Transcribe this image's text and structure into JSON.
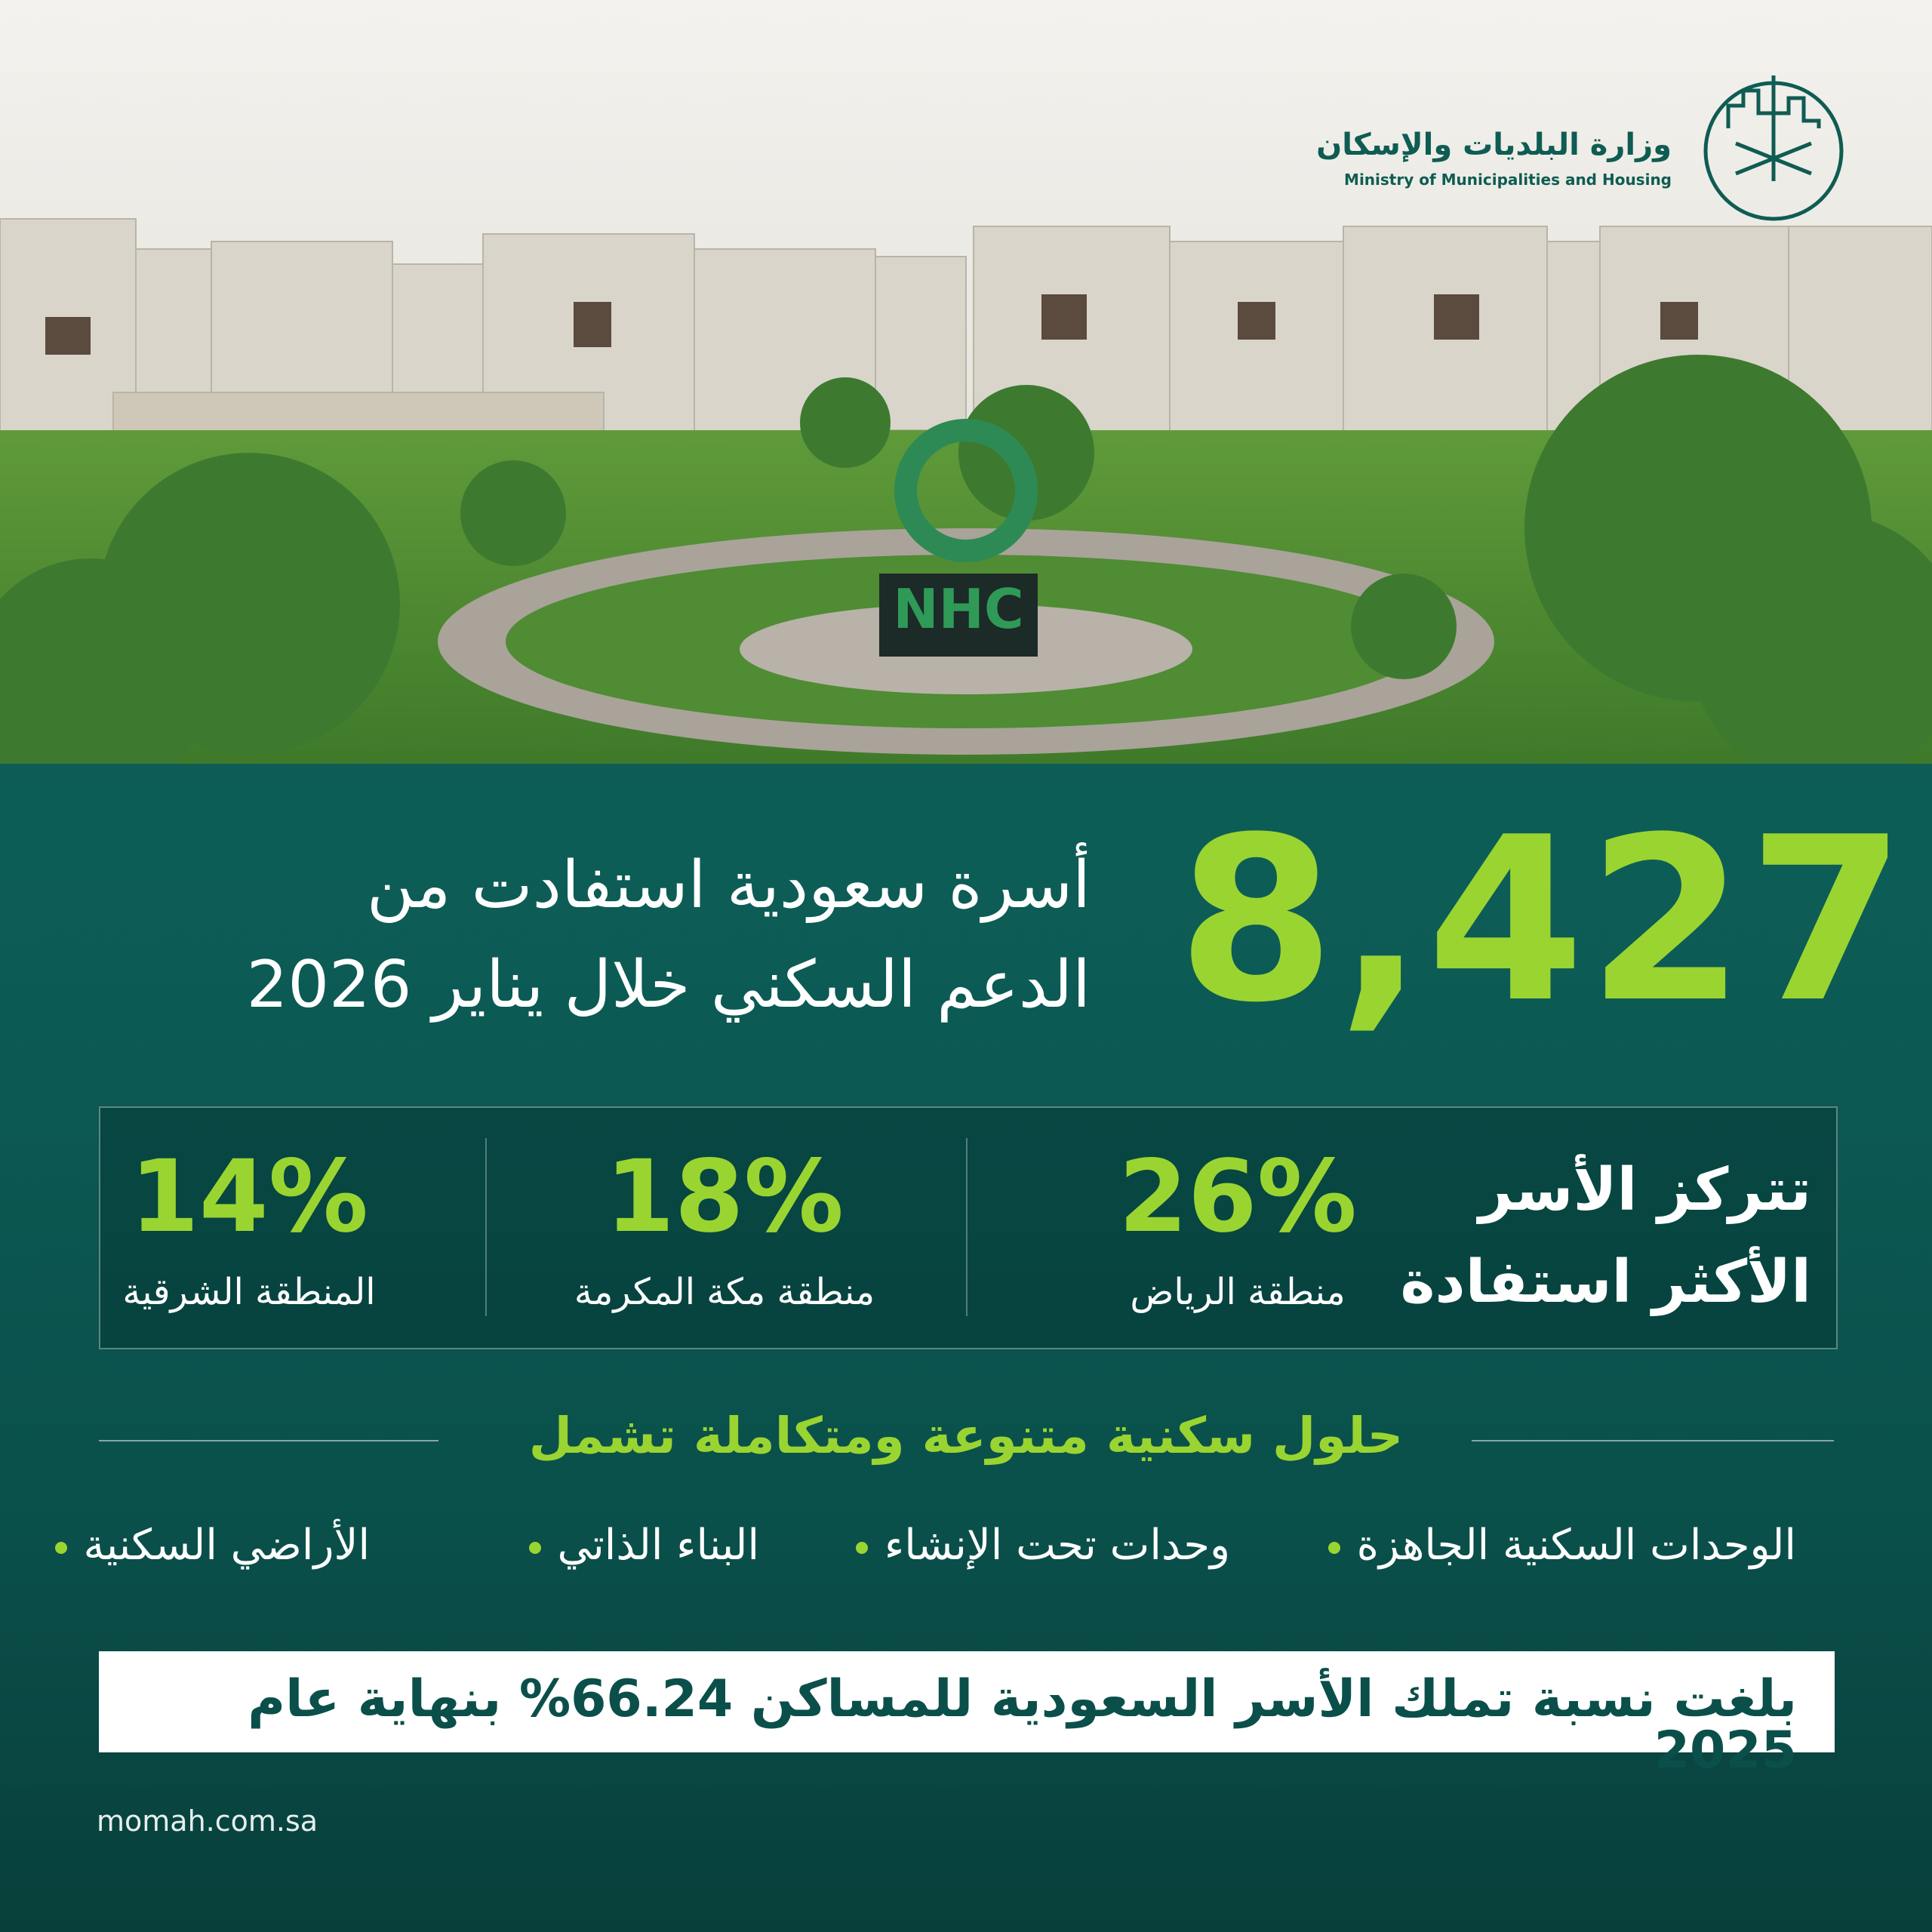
{
  "header": {
    "ministry_ar": "وزارة البلديات والإسكان",
    "ministry_en": "Ministry of Municipalities and Housing"
  },
  "photo": {
    "sign": "NHC"
  },
  "headline": {
    "number": "8,427",
    "lines": [
      "أسرة سعودية استفادت من",
      "الدعم السكني خلال يناير 2026"
    ]
  },
  "regions": {
    "title": [
      "تتركز الأسر",
      "الأكثر استفادة"
    ],
    "items": [
      {
        "percent": "26%",
        "label": "منطقة الرياض"
      },
      {
        "percent": "18%",
        "label": "منطقة مكة المكرمة"
      },
      {
        "percent": "14%",
        "label": "المنطقة الشرقية"
      }
    ]
  },
  "solutions": {
    "title": "حلول سكنية متنوعة ومتكاملة تشمل",
    "items": [
      "الوحدات السكنية الجاهزة",
      "وحدات تحت الإنشاء",
      "البناء الذاتي",
      "الأراضي السكنية"
    ]
  },
  "note": "بلغت نسبة تملك الأسر السعودية للمساكن 66.24% بنهاية عام 2025",
  "website": "momah.com.sa"
}
